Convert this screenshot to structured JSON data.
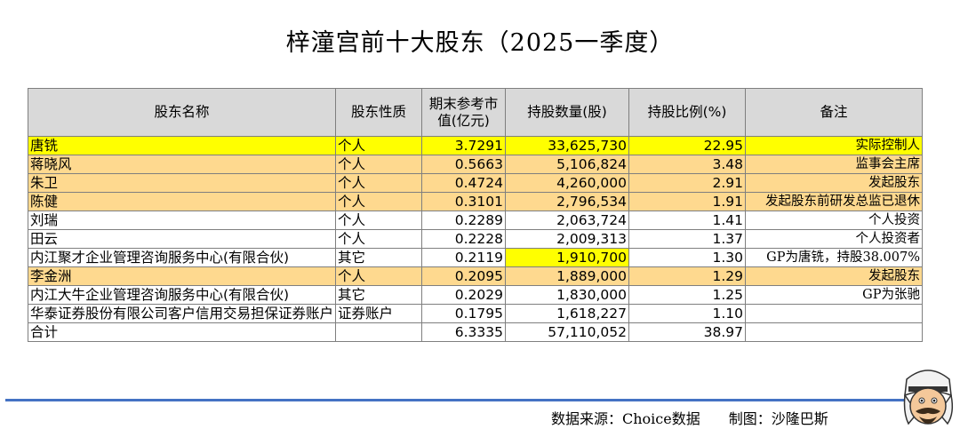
{
  "title": "梓潼宫前十大股东（2025一季度）",
  "chart_data": {
    "type": "table",
    "columns": [
      "股东名称",
      "股东性质",
      "期末参考市值(亿元)",
      "持股数量(股)",
      "持股比例(%)",
      "备注"
    ],
    "rows": [
      {
        "name": "唐铣",
        "type": "个人",
        "value": "3.7291",
        "shares": "33,625,730",
        "ratio": "22.95",
        "note": "实际控制人"
      },
      {
        "name": "蒋晓风",
        "type": "个人",
        "value": "0.5663",
        "shares": "5,106,824",
        "ratio": "3.48",
        "note": "监事会主席"
      },
      {
        "name": "朱卫",
        "type": "个人",
        "value": "0.4724",
        "shares": "4,260,000",
        "ratio": "2.91",
        "note": "发起股东"
      },
      {
        "name": "陈健",
        "type": "个人",
        "value": "0.3101",
        "shares": "2,796,534",
        "ratio": "1.91",
        "note": "发起股东前研发总监已退休"
      },
      {
        "name": "刘瑞",
        "type": "个人",
        "value": "0.2289",
        "shares": "2,063,724",
        "ratio": "1.41",
        "note": "个人投资"
      },
      {
        "name": "田云",
        "type": "个人",
        "value": "0.2228",
        "shares": "2,009,313",
        "ratio": "1.37",
        "note": "个人投资者"
      },
      {
        "name": "内江聚才企业管理咨询服务中心(有限合伙)",
        "type": "其它",
        "value": "0.2119",
        "shares": "1,910,700",
        "ratio": "1.30",
        "note": "GP为唐铣，持股38.007%"
      },
      {
        "name": "李金洲",
        "type": "个人",
        "value": "0.2095",
        "shares": "1,889,000",
        "ratio": "1.29",
        "note": "发起股东"
      },
      {
        "name": "内江大牛企业管理咨询服务中心(有限合伙)",
        "type": "其它",
        "value": "0.2029",
        "shares": "1,830,000",
        "ratio": "1.25",
        "note": "GP为张驰"
      },
      {
        "name": "华泰证券股份有限公司客户信用交易担保证券账户",
        "type": "证券账户",
        "value": "0.1795",
        "shares": "1,618,227",
        "ratio": "1.10",
        "note": ""
      },
      {
        "name": "合计",
        "type": "",
        "value": "6.3335",
        "shares": "57,110,052",
        "ratio": "38.97",
        "note": ""
      }
    ],
    "row_highlight": [
      "yellow",
      "orange",
      "orange",
      "orange",
      "none",
      "none",
      "shares-yellow",
      "orange",
      "none",
      "none",
      "none"
    ],
    "colors": {
      "yellow": "#ffff00",
      "orange": "#fed98f",
      "header": "#d9d9d9",
      "rule": "#4472c4"
    }
  },
  "footer": {
    "source": "数据来源：Choice数据　　制图：沙隆巴斯"
  },
  "logo_icon": "cartoon-mascot-icon"
}
